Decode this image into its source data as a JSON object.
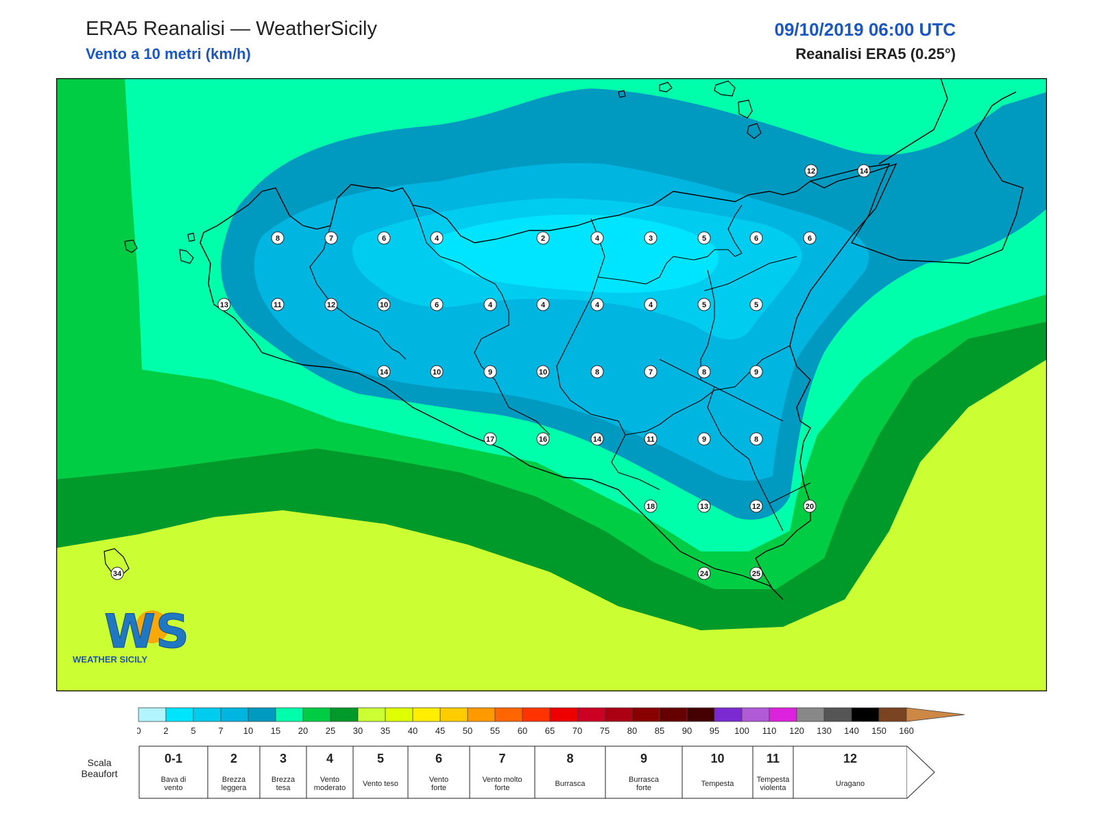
{
  "header": {
    "title": "ERA5 Reanalisi — WeatherSicily",
    "subtitle": "Vento a 10 metri (km/h)",
    "datetime": "09/10/2019 06:00 UTC",
    "model": "Reanalisi ERA5 (0.25°)"
  },
  "logo": {
    "text": "WS",
    "caption": "WEATHER SICILY"
  },
  "station_values": [
    8,
    7,
    6,
    4,
    2,
    4,
    3,
    5,
    6,
    6,
    12,
    14,
    13,
    11,
    12,
    10,
    6,
    4,
    4,
    4,
    4,
    5,
    5,
    14,
    10,
    9,
    10,
    8,
    7,
    8,
    9,
    17,
    16,
    14,
    11,
    9,
    8,
    18,
    13,
    12,
    20,
    24,
    25,
    34
  ],
  "legend": {
    "ticks": [
      "0",
      "2",
      "5",
      "7",
      "10",
      "15",
      "20",
      "25",
      "30",
      "35",
      "40",
      "45",
      "50",
      "55",
      "60",
      "65",
      "70",
      "75",
      "80",
      "85",
      "90",
      "95",
      "100",
      "110",
      "120",
      "130",
      "140",
      "150",
      "160"
    ],
    "colors": [
      "#b3f5ff",
      "#00e5ff",
      "#00ccef",
      "#00b5e0",
      "#0099c0",
      "#00ffaa",
      "#00cc44",
      "#009a2a",
      "#ccff33",
      "#ddff00",
      "#ffee00",
      "#ffcc00",
      "#ff9900",
      "#ff6600",
      "#ff3300",
      "#ee0000",
      "#cc0022",
      "#aa0011",
      "#880000",
      "#660000",
      "#440000",
      "#7a2ad0",
      "#b05ad8",
      "#dd22dd",
      "#888888",
      "#555555",
      "#000000",
      "#7a4422",
      "#cc8844"
    ]
  },
  "beaufort": {
    "label_line1": "Scala",
    "label_line2": "Beaufort",
    "classes": [
      {
        "num": "0-1",
        "l1": "Bava di",
        "l2": "vento"
      },
      {
        "num": "2",
        "l1": "Brezza",
        "l2": "leggera"
      },
      {
        "num": "3",
        "l1": "Brezza",
        "l2": "tesa"
      },
      {
        "num": "4",
        "l1": "Vento",
        "l2": "moderato"
      },
      {
        "num": "5",
        "l1": "Vento teso",
        "l2": ""
      },
      {
        "num": "6",
        "l1": "Vento",
        "l2": "forte"
      },
      {
        "num": "7",
        "l1": "Vento molto",
        "l2": "forte"
      },
      {
        "num": "8",
        "l1": "Burrasca",
        "l2": ""
      },
      {
        "num": "9",
        "l1": "Burrasca",
        "l2": "forte"
      },
      {
        "num": "10",
        "l1": "Tempesta",
        "l2": ""
      },
      {
        "num": "11",
        "l1": "Tempesta",
        "l2": "violenta"
      },
      {
        "num": "12",
        "l1": "Uragano",
        "l2": ""
      }
    ]
  }
}
